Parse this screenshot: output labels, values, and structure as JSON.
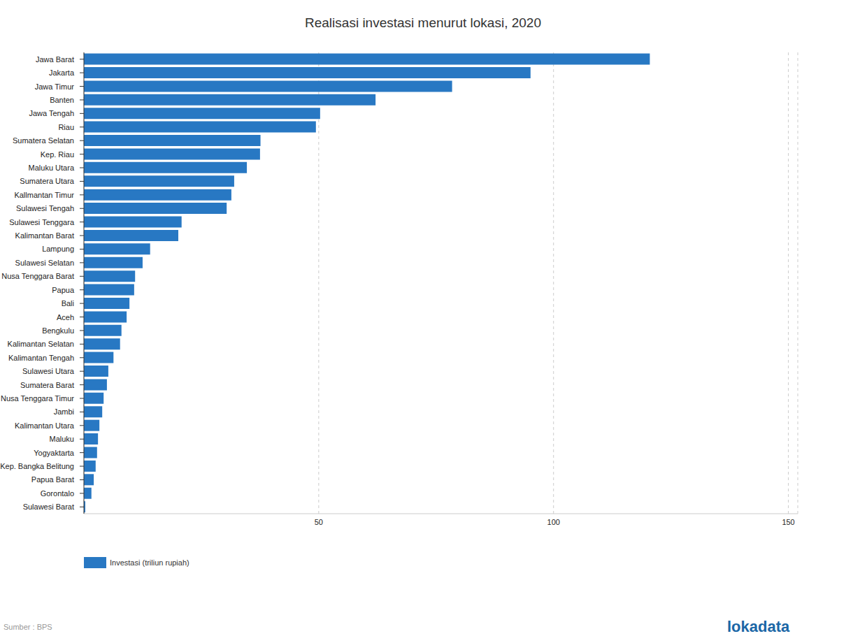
{
  "chart_data": {
    "type": "bar",
    "title": "Realisasi investasi menurut lokasi, 2020",
    "orientation": "horizontal",
    "categories": [
      "Jawa Barat",
      "Jakarta",
      "Jawa Timur",
      "Banten",
      "Jawa Tengah",
      "Riau",
      "Sumatera Selatan",
      "Kep. Riau",
      "Maluku Utara",
      "Sumatera Utara",
      "Kallmantan Timur",
      "Sulawesi Tengah",
      "Sulawesi Tenggara",
      "Kalimantan Barat",
      "Lampung",
      "Sulawesi Selatan",
      "Nusa Tenggara Barat",
      "Papua",
      "Bali",
      "Aceh",
      "Bengkulu",
      "Kalimantan Selatan",
      "Kalimantan Tengah",
      "Sulawesi Utara",
      "Sumatera Barat",
      "Nusa Tenggara Timur",
      "Jambi",
      "Kalimantan Utara",
      "Maluku",
      "Yogyaktarta",
      "Kep. Bangka Belitung",
      "Papua Barat",
      "Gorontalo",
      "Sulawesi Barat"
    ],
    "series": [
      {
        "name": "Investasi (triliun rupiah)",
        "color": "#2878c3",
        "values": [
          120.5,
          95.1,
          78.4,
          62.1,
          50.3,
          49.4,
          37.6,
          37.5,
          34.7,
          32.0,
          31.4,
          30.4,
          20.8,
          20.1,
          14.1,
          12.5,
          10.9,
          10.7,
          9.7,
          9.1,
          8.0,
          7.7,
          6.3,
          5.2,
          4.9,
          4.2,
          3.9,
          3.3,
          3.0,
          2.8,
          2.5,
          2.1,
          1.6,
          0.3
        ]
      }
    ],
    "xlim": [
      0,
      152
    ],
    "xticks": [
      50,
      100,
      150
    ],
    "grid": true,
    "legend": "bottom left",
    "source": "Sumber : BPS",
    "logo": "lokadata"
  }
}
